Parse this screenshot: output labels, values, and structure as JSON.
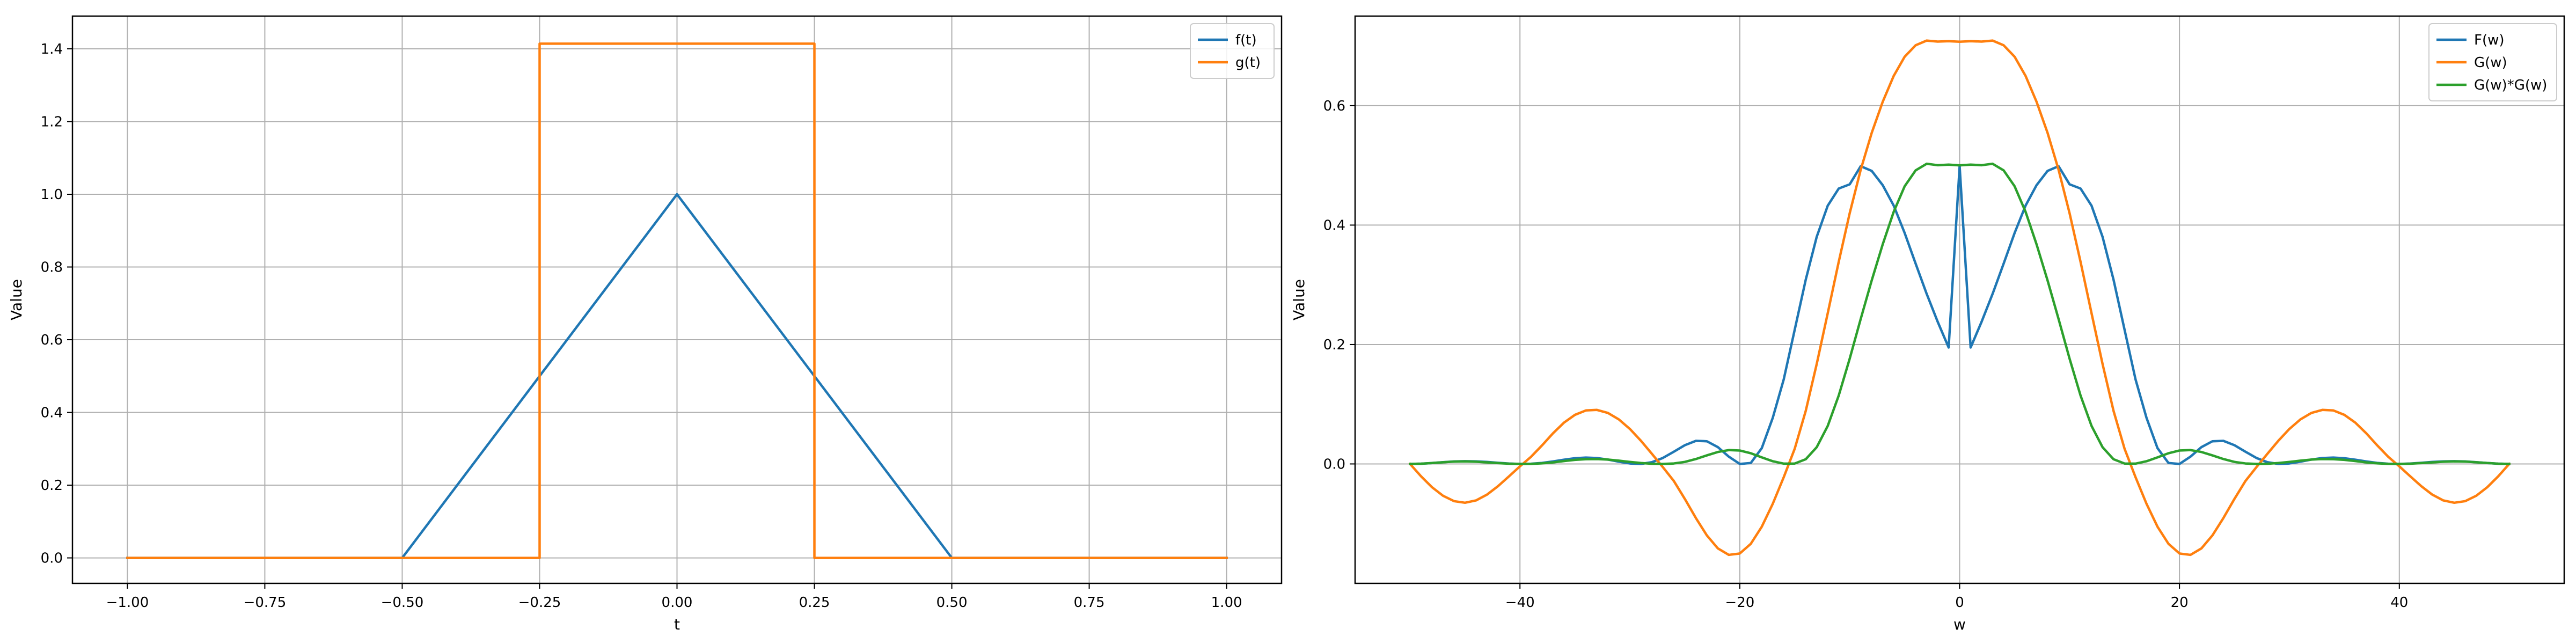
{
  "colors": {
    "c0": "#1f77b4",
    "c1": "#ff7f0e",
    "c2": "#2ca02c",
    "grid": "#b0b0b0",
    "axes": "#000000"
  },
  "chart_data": [
    {
      "type": "line",
      "title": "",
      "xlabel": "t",
      "ylabel": "Value",
      "xlim": [
        -1.1,
        1.1
      ],
      "ylim": [
        -0.07,
        1.49
      ],
      "xticks": [
        -1.0,
        -0.75,
        -0.5,
        -0.25,
        0.0,
        0.25,
        0.5,
        0.75,
        1.0
      ],
      "xtick_labels": [
        "−1.00",
        "−0.75",
        "−0.50",
        "−0.25",
        "0.00",
        "0.25",
        "0.50",
        "0.75",
        "1.00"
      ],
      "yticks": [
        0.0,
        0.2,
        0.4,
        0.6,
        0.8,
        1.0,
        1.2,
        1.4
      ],
      "ytick_labels": [
        "0.0",
        "0.2",
        "0.4",
        "0.6",
        "0.8",
        "1.0",
        "1.2",
        "1.4"
      ],
      "grid": true,
      "legend_position": "upper right",
      "series": [
        {
          "name": "f(t)",
          "color": "#1f77b4",
          "x": [
            -1.0,
            -0.5,
            0.0,
            0.5,
            1.0
          ],
          "y": [
            0.0,
            0.0,
            1.0,
            0.0,
            0.0
          ]
        },
        {
          "name": "g(t)",
          "color": "#ff7f0e",
          "x": [
            -1.0,
            -0.25,
            -0.25,
            0.25,
            0.25,
            1.0
          ],
          "y": [
            0.0,
            0.0,
            1.4142,
            1.4142,
            0.0,
            0.0
          ]
        }
      ]
    },
    {
      "type": "line",
      "title": "",
      "xlabel": "w",
      "ylabel": "Value",
      "xlim": [
        -55,
        55
      ],
      "ylim": [
        -0.2,
        0.75
      ],
      "xticks": [
        -40,
        -20,
        0,
        20,
        40
      ],
      "xtick_labels": [
        "−40",
        "−20",
        "0",
        "20",
        "40"
      ],
      "yticks": [
        0.0,
        0.2,
        0.4,
        0.6
      ],
      "ytick_labels": [
        "0.0",
        "0.2",
        "0.4",
        "0.6"
      ],
      "grid": true,
      "legend_position": "upper right",
      "series": [
        {
          "name": "F(w)",
          "color": "#1f77b4",
          "x": [
            -50,
            -49,
            -48,
            -47,
            -46,
            -45,
            -44,
            -43,
            -42,
            -41,
            -40,
            -39,
            -38,
            -37,
            -36,
            -35,
            -34,
            -33,
            -32,
            -31,
            -30,
            -29,
            -28,
            -27,
            -26,
            -25,
            -24,
            -23,
            -22,
            -21,
            -20,
            -19,
            -18,
            -17,
            -16,
            -15,
            -14,
            -13,
            -12,
            -11,
            -10,
            -9,
            -8,
            -7,
            -6,
            -5,
            -4,
            -3,
            -2,
            -1,
            0,
            1,
            2,
            3,
            4,
            5,
            6,
            7,
            8,
            9,
            10,
            11,
            12,
            13,
            14,
            15,
            16,
            17,
            18,
            19,
            20,
            21,
            22,
            23,
            24,
            25,
            26,
            27,
            28,
            29,
            30,
            31,
            32,
            33,
            34,
            35,
            36,
            37,
            38,
            39,
            40,
            41,
            42,
            43,
            44,
            45,
            46,
            47,
            48,
            49,
            50
          ],
          "y": [
            0.0,
            0.0004,
            0.0015,
            0.0029,
            0.0041,
            0.0046,
            0.0043,
            0.0033,
            0.0019,
            0.0007,
            0.0,
            0.0003,
            0.0017,
            0.0042,
            0.0071,
            0.0095,
            0.0107,
            0.0099,
            0.0073,
            0.0038,
            0.0008,
            0.0,
            0.0029,
            0.01,
            0.0205,
            0.0314,
            0.0386,
            0.038,
            0.0282,
            0.0122,
            0.0,
            0.0016,
            0.0265,
            0.0773,
            0.1418,
            0.2251,
            0.3086,
            0.3805,
            0.4325,
            0.4612,
            0.4683,
            0.4986,
            0.4908,
            0.4669,
            0.4327,
            0.3867,
            0.3353,
            0.2849,
            0.2382,
            0.195,
            0.4988,
            0.195,
            0.2382,
            0.2849,
            0.3353,
            0.3867,
            0.4327,
            0.4669,
            0.4908,
            0.4986,
            0.4683,
            0.4612,
            0.4325,
            0.3805,
            0.3086,
            0.2251,
            0.1418,
            0.0773,
            0.0265,
            0.0016,
            0.0,
            0.0122,
            0.0282,
            0.038,
            0.0386,
            0.0314,
            0.0205,
            0.01,
            0.0029,
            0.0,
            0.0008,
            0.0038,
            0.0073,
            0.0099,
            0.0107,
            0.0095,
            0.0071,
            0.0042,
            0.0017,
            0.0003,
            0.0,
            0.0007,
            0.0019,
            0.0033,
            0.0043,
            0.0046,
            0.0041,
            0.0029,
            0.0015,
            0.0004,
            0.0
          ]
        },
        {
          "name": "G(w)",
          "color": "#ff7f0e",
          "x": [
            -50,
            -49,
            -48,
            -47,
            -46,
            -45,
            -44,
            -43,
            -42,
            -41,
            -40,
            -39,
            -38,
            -37,
            -36,
            -35,
            -34,
            -33,
            -32,
            -31,
            -30,
            -29,
            -28,
            -27,
            -26,
            -25,
            -24,
            -23,
            -22,
            -21,
            -20,
            -19,
            -18,
            -17,
            -16,
            -15,
            -14,
            -13,
            -12,
            -11,
            -10,
            -9,
            -8,
            -7,
            -6,
            -5,
            -4,
            -3,
            -2,
            -1,
            0,
            1,
            2,
            3,
            4,
            5,
            6,
            7,
            8,
            9,
            10,
            11,
            12,
            13,
            14,
            15,
            16,
            17,
            18,
            19,
            20,
            21,
            22,
            23,
            24,
            25,
            26,
            27,
            28,
            29,
            30,
            31,
            32,
            33,
            34,
            35,
            36,
            37,
            38,
            39,
            40,
            41,
            42,
            43,
            44,
            45,
            46,
            47,
            48,
            49,
            50
          ],
          "y": [
            0.0,
            -0.0207,
            -0.039,
            -0.0533,
            -0.0623,
            -0.065,
            -0.0611,
            -0.0514,
            -0.0373,
            -0.0208,
            -0.004,
            0.0118,
            0.0309,
            0.0512,
            0.0691,
            0.0822,
            0.0896,
            0.0905,
            0.0854,
            0.0745,
            0.0586,
            0.0389,
            0.017,
            -0.0054,
            -0.0286,
            -0.0586,
            -0.0905,
            -0.1196,
            -0.1414,
            -0.1523,
            -0.15,
            -0.1338,
            -0.1051,
            -0.0667,
            -0.0221,
            0.0257,
            0.0889,
            0.1676,
            0.2524,
            0.3385,
            0.42,
            0.4927,
            0.5544,
            0.6064,
            0.6498,
            0.682,
            0.7012,
            0.709,
            0.7073,
            0.708,
            0.7071,
            0.708,
            0.7073,
            0.709,
            0.7012,
            0.682,
            0.6498,
            0.6064,
            0.5544,
            0.4927,
            0.42,
            0.3385,
            0.2524,
            0.1676,
            0.0889,
            0.0257,
            -0.0221,
            -0.0667,
            -0.1051,
            -0.1338,
            -0.15,
            -0.1523,
            -0.1414,
            -0.1196,
            -0.0905,
            -0.0586,
            -0.0286,
            -0.0054,
            0.017,
            0.0389,
            0.0586,
            0.0745,
            0.0854,
            0.0905,
            0.0896,
            0.0822,
            0.0691,
            0.0512,
            0.0309,
            0.0118,
            -0.004,
            -0.0208,
            -0.0373,
            -0.0514,
            -0.0611,
            -0.065,
            -0.0623,
            -0.0533,
            -0.039,
            -0.0207,
            0.0
          ]
        },
        {
          "name": "G(w)*G(w)",
          "color": "#2ca02c",
          "x": [
            -50,
            -49,
            -48,
            -47,
            -46,
            -45,
            -44,
            -43,
            -42,
            -41,
            -40,
            -39,
            -38,
            -37,
            -36,
            -35,
            -34,
            -33,
            -32,
            -31,
            -30,
            -29,
            -28,
            -27,
            -26,
            -25,
            -24,
            -23,
            -22,
            -21,
            -20,
            -19,
            -18,
            -17,
            -16,
            -15,
            -14,
            -13,
            -12,
            -11,
            -10,
            -9,
            -8,
            -7,
            -6,
            -5,
            -4,
            -3,
            -2,
            -1,
            0,
            1,
            2,
            3,
            4,
            5,
            6,
            7,
            8,
            9,
            10,
            11,
            12,
            13,
            14,
            15,
            16,
            17,
            18,
            19,
            20,
            21,
            22,
            23,
            24,
            25,
            26,
            27,
            28,
            29,
            30,
            31,
            32,
            33,
            34,
            35,
            36,
            37,
            38,
            39,
            40,
            41,
            42,
            43,
            44,
            45,
            46,
            47,
            48,
            49,
            50
          ],
          "y": [
            0.0,
            0.0004,
            0.0015,
            0.0028,
            0.0039,
            0.0042,
            0.0037,
            0.0026,
            0.0014,
            0.0004,
            0.0,
            0.0001,
            0.001,
            0.0026,
            0.0048,
            0.0068,
            0.008,
            0.0082,
            0.0073,
            0.0055,
            0.0034,
            0.0015,
            0.0003,
            0.0,
            0.0008,
            0.0034,
            0.0082,
            0.0143,
            0.02,
            0.0232,
            0.0225,
            0.0179,
            0.011,
            0.0045,
            0.0005,
            0.0007,
            0.0079,
            0.0281,
            0.0637,
            0.1146,
            0.1764,
            0.2428,
            0.3073,
            0.3677,
            0.4222,
            0.4651,
            0.4917,
            0.5027,
            0.5003,
            0.5013,
            0.5,
            0.5013,
            0.5003,
            0.5027,
            0.4917,
            0.4651,
            0.4222,
            0.3677,
            0.3073,
            0.2428,
            0.1764,
            0.1146,
            0.0637,
            0.0281,
            0.0079,
            0.0007,
            0.0005,
            0.0045,
            0.011,
            0.0179,
            0.0225,
            0.0232,
            0.02,
            0.0143,
            0.0082,
            0.0034,
            0.0008,
            0.0,
            0.0003,
            0.0015,
            0.0034,
            0.0055,
            0.0073,
            0.0082,
            0.008,
            0.0068,
            0.0048,
            0.0026,
            0.001,
            0.0001,
            0.0,
            0.0004,
            0.0014,
            0.0026,
            0.0037,
            0.0042,
            0.0039,
            0.0028,
            0.0015,
            0.0004,
            0.0
          ]
        }
      ]
    }
  ]
}
